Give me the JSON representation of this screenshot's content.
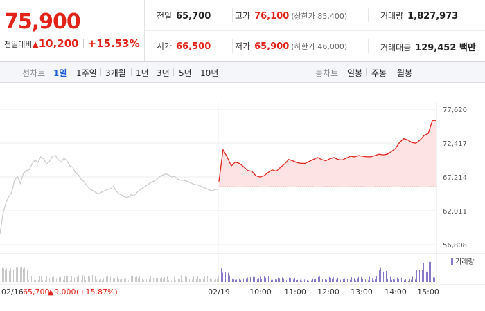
{
  "quote": {
    "price": "75,900",
    "change_label": "전일대비",
    "change_amount": "10,200",
    "change_percent": "+15.53%"
  },
  "stats": {
    "prev_close_label": "전일",
    "prev_close": "65,700",
    "high_label": "고가",
    "high": "76,100",
    "upper_limit": "(상한가 85,400)",
    "volume_label": "거래량",
    "volume": "1,827,973",
    "open_label": "시가",
    "open": "66,500",
    "low_label": "저가",
    "low": "65,900",
    "lower_limit": "(하한가 46,000)",
    "value_label": "거래대금",
    "value": "129,452 백만"
  },
  "tabs": {
    "line_chart": "선차트",
    "periods": [
      "1일",
      "1주일",
      "3개월",
      "1년",
      "3년",
      "5년",
      "10년"
    ],
    "active_period": "1일",
    "candle_chart": "봉차트",
    "candles": [
      "일봉",
      "주봉",
      "월봉"
    ]
  },
  "chart_data": {
    "type": "line",
    "ytick_labels": [
      "77,620",
      "72,417",
      "67,214",
      "62,011",
      "56,808"
    ],
    "yticks": [
      77620,
      72417,
      67214,
      62011,
      56808
    ],
    "xtick_labels": [
      "02/19",
      "10:00",
      "11:00",
      "12:00",
      "13:00",
      "14:00",
      "15:00"
    ],
    "prev_day_label": "02/16",
    "prev_day_close": "65,700",
    "prev_day_change": "9,000",
    "prev_day_change_pct": "(+15.87%)",
    "volume_legend": "거래량",
    "reference_price": 65700,
    "colors": {
      "prev": "#c9c9c9",
      "today": "#e2231a",
      "fill": "#fde3e3",
      "volume_prev": "#c9c9c9",
      "volume_today": "#8a78c9"
    },
    "series": [
      {
        "values": [
          58500,
          61500,
          63200,
          64200,
          64800,
          66700,
          67300,
          66200,
          67700,
          68200,
          68300,
          69200,
          69800,
          69400,
          70300,
          70000,
          69200,
          69600,
          70400,
          70500,
          69900,
          69500,
          70100,
          69700,
          68900,
          68700,
          67800,
          67500,
          66800,
          66400,
          65800,
          65300,
          65100,
          64800,
          64600,
          64900,
          65100,
          65300,
          65400,
          65800,
          65000,
          64600,
          64400,
          64100,
          64100,
          64500,
          64300,
          64800,
          65200,
          65500,
          65800,
          66100,
          66400,
          66600,
          66900,
          67300,
          67500,
          67700,
          67500,
          67200,
          67300,
          66900,
          66700,
          66700,
          66600,
          66400,
          66200,
          66000,
          66000,
          65800,
          65600,
          65400,
          65200,
          65100,
          65300,
          65300
        ]
      },
      {
        "values": [
          66500,
          71400,
          70300,
          68900,
          69500,
          69300,
          68800,
          68200,
          68100,
          67400,
          67200,
          67400,
          67900,
          68300,
          68100,
          68700,
          69200,
          69900,
          69700,
          69400,
          69300,
          69300,
          69600,
          69900,
          70200,
          69900,
          69700,
          70000,
          70200,
          69900,
          69800,
          70100,
          70400,
          70300,
          70500,
          70400,
          70300,
          70300,
          70500,
          70700,
          70600,
          70700,
          71100,
          71600,
          72500,
          73100,
          72900,
          72500,
          72400,
          72900,
          73600,
          73900,
          75900,
          75900
        ]
      }
    ]
  }
}
